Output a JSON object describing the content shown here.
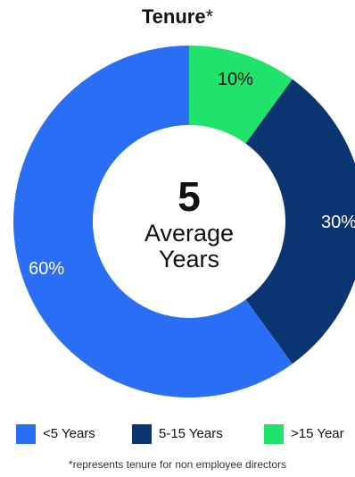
{
  "title": {
    "main": "Tenure",
    "marker": "*"
  },
  "chart_data": {
    "type": "pie",
    "style": "donut",
    "categories": [
      "<5 Years",
      "5-15 Years",
      ">15 Year"
    ],
    "values": [
      60,
      30,
      10
    ],
    "data_labels": [
      "60%",
      "30%",
      "10%"
    ],
    "colors": [
      "#2b6ef6",
      "#0b3570",
      "#1fe36b"
    ],
    "center_value": "5",
    "center_line1": "Average",
    "center_line2": "Years",
    "legend_position": "bottom"
  },
  "legend": [
    {
      "label": "<5 Years",
      "color": "#2b6ef6"
    },
    {
      "label": "5-15 Years",
      "color": "#0b3570"
    },
    {
      "label": ">15 Year",
      "color": "#1fe36b"
    }
  ],
  "footnote": "*represents tenure for non employee directors"
}
